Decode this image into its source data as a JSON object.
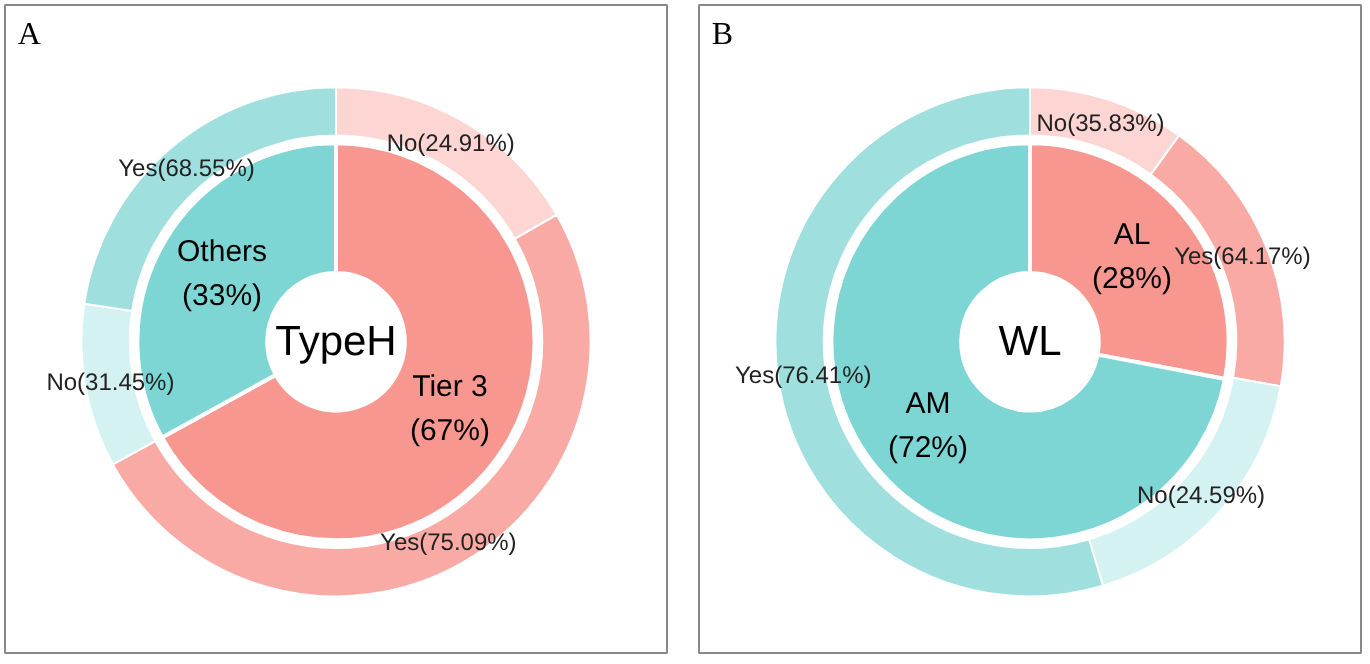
{
  "chart_data": [
    {
      "type": "donut",
      "title": "A",
      "annotations": [
        "TypeH"
      ],
      "series": [
        {
          "values": [
            67,
            33
          ],
          "value_labels": [
            "Tier 3\n(67%)",
            "Others\n(33%)"
          ],
          "colors": [
            "#f8978f",
            "#7dd6d3"
          ]
        },
        {
          "values": [
            16.69,
            50.31,
            10.38,
            22.62
          ],
          "value_labels": [
            "No(24.91%)",
            "Yes(75.09%)",
            "No(31.45%)",
            "Yes(68.55%)"
          ],
          "colors": [
            "#fdd5d2",
            "#f9aaa5",
            "#d3f2f1",
            "#9fe0de"
          ]
        }
      ]
    },
    {
      "type": "donut",
      "title": "B",
      "annotations": [
        "WL"
      ],
      "series": [
        {
          "values": [
            28,
            72
          ],
          "value_labels": [
            "AL\n(28%)",
            "AM\n(72%)"
          ],
          "colors": [
            "#f8978f",
            "#7dd6d3"
          ]
        },
        {
          "values": [
            10.03,
            17.97,
            17.7,
            55.02
          ],
          "value_labels": [
            "No(35.83%)",
            "Yes(64.17%)",
            "No(24.59%)",
            "Yes(76.41%)"
          ],
          "colors": [
            "#fdd5d2",
            "#f9aaa5",
            "#d3f2f1",
            "#9fe0de"
          ]
        }
      ]
    }
  ]
}
